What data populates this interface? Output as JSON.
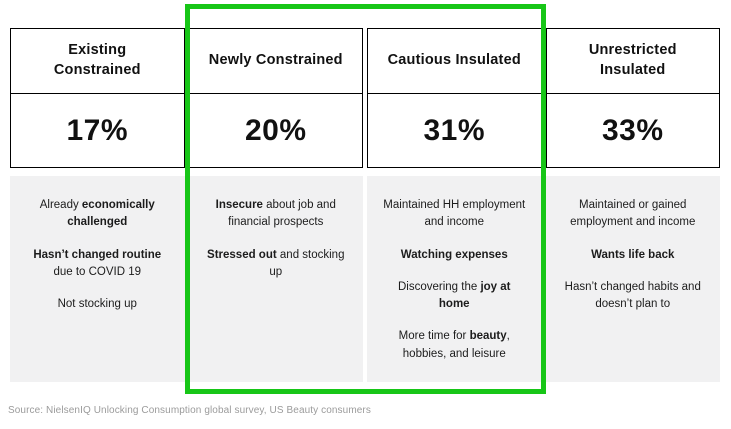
{
  "colors": {
    "highlight": "#17c617",
    "border": "#000000",
    "desc_bg": "#f1f1f2",
    "source_text": "#9b9b9b"
  },
  "chart_data": {
    "type": "table",
    "title": "",
    "categories": [
      "Existing Constrained",
      "Newly Constrained",
      "Cautious Insulated",
      "Unrestricted Insulated"
    ],
    "values": [
      17,
      20,
      31,
      33
    ],
    "value_unit": "%",
    "highlighted_categories": [
      "Newly Constrained",
      "Cautious Insulated"
    ],
    "source": "Source: NielsenIQ Unlocking Consumption global survey, US Beauty consumers"
  },
  "columns": [
    {
      "title": "Existing Constrained",
      "percent": "17%",
      "points": [
        {
          "parts": [
            {
              "text": "Already ",
              "bold": false
            },
            {
              "text": "economically challenged",
              "bold": true
            }
          ]
        },
        {
          "parts": [
            {
              "text": "Hasn’t changed routine",
              "bold": true
            },
            {
              "text": " due to COVID 19",
              "bold": false
            }
          ]
        },
        {
          "parts": [
            {
              "text": "Not stocking up",
              "bold": false
            }
          ]
        }
      ]
    },
    {
      "title": "Newly Constrained",
      "percent": "20%",
      "points": [
        {
          "parts": [
            {
              "text": "Insecure",
              "bold": true
            },
            {
              "text": " about job and financial prospects",
              "bold": false
            }
          ]
        },
        {
          "parts": [
            {
              "text": "Stressed out",
              "bold": true
            },
            {
              "text": " and stocking up",
              "bold": false
            }
          ]
        }
      ]
    },
    {
      "title": "Cautious Insulated",
      "percent": "31%",
      "points": [
        {
          "parts": [
            {
              "text": "Maintained HH employment and income",
              "bold": false
            }
          ]
        },
        {
          "parts": [
            {
              "text": "Watching expenses",
              "bold": true
            }
          ]
        },
        {
          "parts": [
            {
              "text": "Discovering the ",
              "bold": false
            },
            {
              "text": "joy at home",
              "bold": true
            }
          ]
        },
        {
          "parts": [
            {
              "text": "More time for ",
              "bold": false
            },
            {
              "text": "beauty",
              "bold": true
            },
            {
              "text": ", hobbies, and leisure",
              "bold": false
            }
          ]
        }
      ]
    },
    {
      "title": "Unrestricted Insulated",
      "percent": "33%",
      "points": [
        {
          "parts": [
            {
              "text": "Maintained or gained employment and income",
              "bold": false
            }
          ]
        },
        {
          "parts": [
            {
              "text": "Wants life back",
              "bold": true
            }
          ]
        },
        {
          "parts": [
            {
              "text": "Hasn’t changed habits and doesn’t plan to",
              "bold": false
            }
          ]
        }
      ]
    }
  ],
  "source": "Source: NielsenIQ Unlocking Consumption global survey, US Beauty consumers"
}
